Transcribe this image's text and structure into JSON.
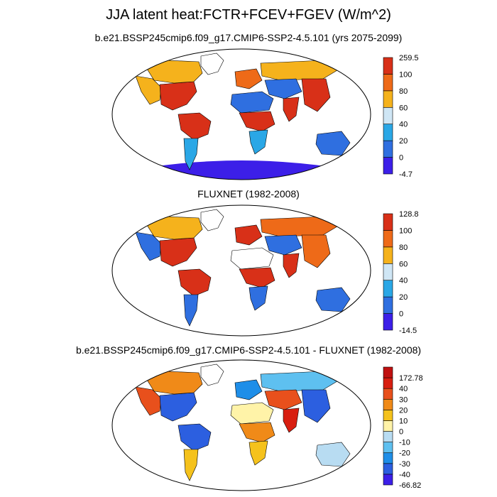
{
  "figure": {
    "title": "JJA latent heat:FCTR+FCEV+FGEV (W/m^2)"
  },
  "panels": [
    {
      "id": "model",
      "subtitle": "b.e21.BSSP245cmip6.f09_g17.CMIP6-SSP2-4.5.101 (yrs 2075-2099)",
      "colorbar": {
        "colors": [
          "#3c1fe8",
          "#2f6fe0",
          "#2aa7e6",
          "#cfe6f5",
          "#f5b21c",
          "#ee6a18",
          "#d83018"
        ],
        "labels": [
          "-4.7",
          "0",
          "20",
          "40",
          "60",
          "80",
          "100",
          "259.5"
        ]
      },
      "antarctica_color": "#3c1fe8",
      "regions": [
        {
          "name": "north-america-west",
          "color": "#f5b21c"
        },
        {
          "name": "north-america-east",
          "color": "#d83018"
        },
        {
          "name": "canada",
          "color": "#f5b21c"
        },
        {
          "name": "amazon",
          "color": "#d83018"
        },
        {
          "name": "south-america-south",
          "color": "#2aa7e6"
        },
        {
          "name": "europe",
          "color": "#ee6a18"
        },
        {
          "name": "sahara",
          "color": "#2f6fe0"
        },
        {
          "name": "central-africa",
          "color": "#d83018"
        },
        {
          "name": "southern-africa",
          "color": "#2aa7e6"
        },
        {
          "name": "siberia",
          "color": "#f5b21c"
        },
        {
          "name": "central-asia",
          "color": "#2f6fe0"
        },
        {
          "name": "east-asia",
          "color": "#d83018"
        },
        {
          "name": "india",
          "color": "#d83018"
        },
        {
          "name": "australia",
          "color": "#2f6fe0"
        },
        {
          "name": "greenland",
          "color": "#ffffff"
        }
      ]
    },
    {
      "id": "fluxnet",
      "subtitle": "FLUXNET (1982-2008)",
      "colorbar": {
        "colors": [
          "#3c1fe8",
          "#2f6fe0",
          "#2aa7e6",
          "#cfe6f5",
          "#f5b21c",
          "#ee6a18",
          "#d83018"
        ],
        "labels": [
          "-14.5",
          "0",
          "20",
          "40",
          "60",
          "80",
          "100",
          "128.8"
        ]
      },
      "antarctica_color": null,
      "regions": [
        {
          "name": "north-america-west",
          "color": "#2f6fe0"
        },
        {
          "name": "north-america-east",
          "color": "#d83018"
        },
        {
          "name": "canada",
          "color": "#f5b21c"
        },
        {
          "name": "amazon",
          "color": "#d83018"
        },
        {
          "name": "south-america-south",
          "color": "#2f6fe0"
        },
        {
          "name": "europe",
          "color": "#d83018"
        },
        {
          "name": "sahara",
          "color": "#ffffff"
        },
        {
          "name": "central-africa",
          "color": "#d83018"
        },
        {
          "name": "southern-africa",
          "color": "#2f6fe0"
        },
        {
          "name": "siberia",
          "color": "#ee6a18"
        },
        {
          "name": "central-asia",
          "color": "#2f6fe0"
        },
        {
          "name": "east-asia",
          "color": "#ee6a18"
        },
        {
          "name": "india",
          "color": "#d83018"
        },
        {
          "name": "australia",
          "color": "#2f6fe0"
        },
        {
          "name": "greenland",
          "color": "#ffffff"
        }
      ]
    },
    {
      "id": "difference",
      "subtitle": "b.e21.BSSP245cmip6.f09_g17.CMIP6-SSP2-4.5.101 - FLUXNET (1982-2008)",
      "colorbar": {
        "colors": [
          "#3c1fe8",
          "#2c5fe0",
          "#1e8ee8",
          "#5ec0f0",
          "#b8dcf2",
          "#fff3a8",
          "#f5c21c",
          "#f08a18",
          "#e8501c",
          "#d81e10",
          "#c01010"
        ],
        "labels": [
          "-66.82",
          "-40",
          "-30",
          "-20",
          "-10",
          "0",
          "10",
          "20",
          "30",
          "40",
          "172.78"
        ]
      },
      "antarctica_color": null,
      "regions": [
        {
          "name": "north-america-west",
          "color": "#e8501c"
        },
        {
          "name": "north-america-east",
          "color": "#2c5fe0"
        },
        {
          "name": "canada",
          "color": "#f08a18"
        },
        {
          "name": "amazon",
          "color": "#2c5fe0"
        },
        {
          "name": "south-america-south",
          "color": "#f5c21c"
        },
        {
          "name": "europe",
          "color": "#1e8ee8"
        },
        {
          "name": "sahara",
          "color": "#fff3a8"
        },
        {
          "name": "central-africa",
          "color": "#f08a18"
        },
        {
          "name": "southern-africa",
          "color": "#f5c21c"
        },
        {
          "name": "siberia",
          "color": "#5ec0f0"
        },
        {
          "name": "central-asia",
          "color": "#e8501c"
        },
        {
          "name": "east-asia",
          "color": "#2c5fe0"
        },
        {
          "name": "india",
          "color": "#d81e10"
        },
        {
          "name": "australia",
          "color": "#b8dcf2"
        },
        {
          "name": "greenland",
          "color": "#ffffff"
        }
      ]
    }
  ]
}
